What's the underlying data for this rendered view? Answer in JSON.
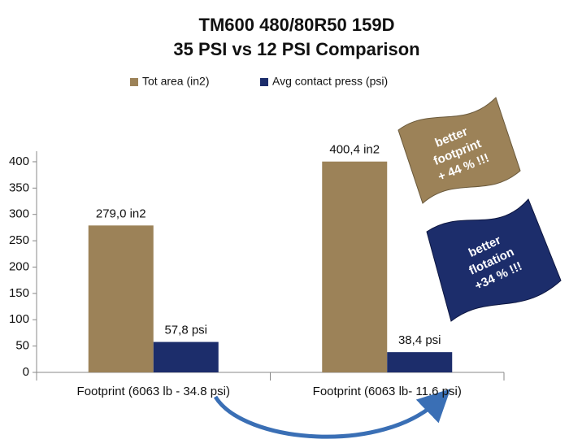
{
  "chart_data": {
    "type": "bar",
    "title": [
      "TM600 480/80R50 159D",
      "35 PSI vs 12 PSI Comparison"
    ],
    "categories": [
      "Footprint (6063 lb - 34.8 psi)",
      "Footprint (6063 lb- 11.6 psi)"
    ],
    "series": [
      {
        "name": "Tot area (in2)",
        "color": "#9c8258",
        "values": [
          279.0,
          400.4
        ],
        "value_labels": [
          "279,0 in2",
          "400,4 in2"
        ]
      },
      {
        "name": "Avg contact press (psi)",
        "color": "#1c2d6b",
        "values": [
          57.8,
          38.4
        ],
        "value_labels": [
          "57,8 psi",
          "38,4 psi"
        ]
      }
    ],
    "ylim": [
      0,
      420
    ],
    "yticks": [
      0,
      50,
      100,
      150,
      200,
      250,
      300,
      350,
      400
    ],
    "legend": "top",
    "annotations": [
      {
        "lines": [
          "better",
          "footprint",
          "+ 44 % !!!"
        ],
        "color": "#9c8258"
      },
      {
        "lines": [
          "better",
          "flotation",
          "+34 % !!!"
        ],
        "color": "#1c2d6b"
      }
    ]
  }
}
